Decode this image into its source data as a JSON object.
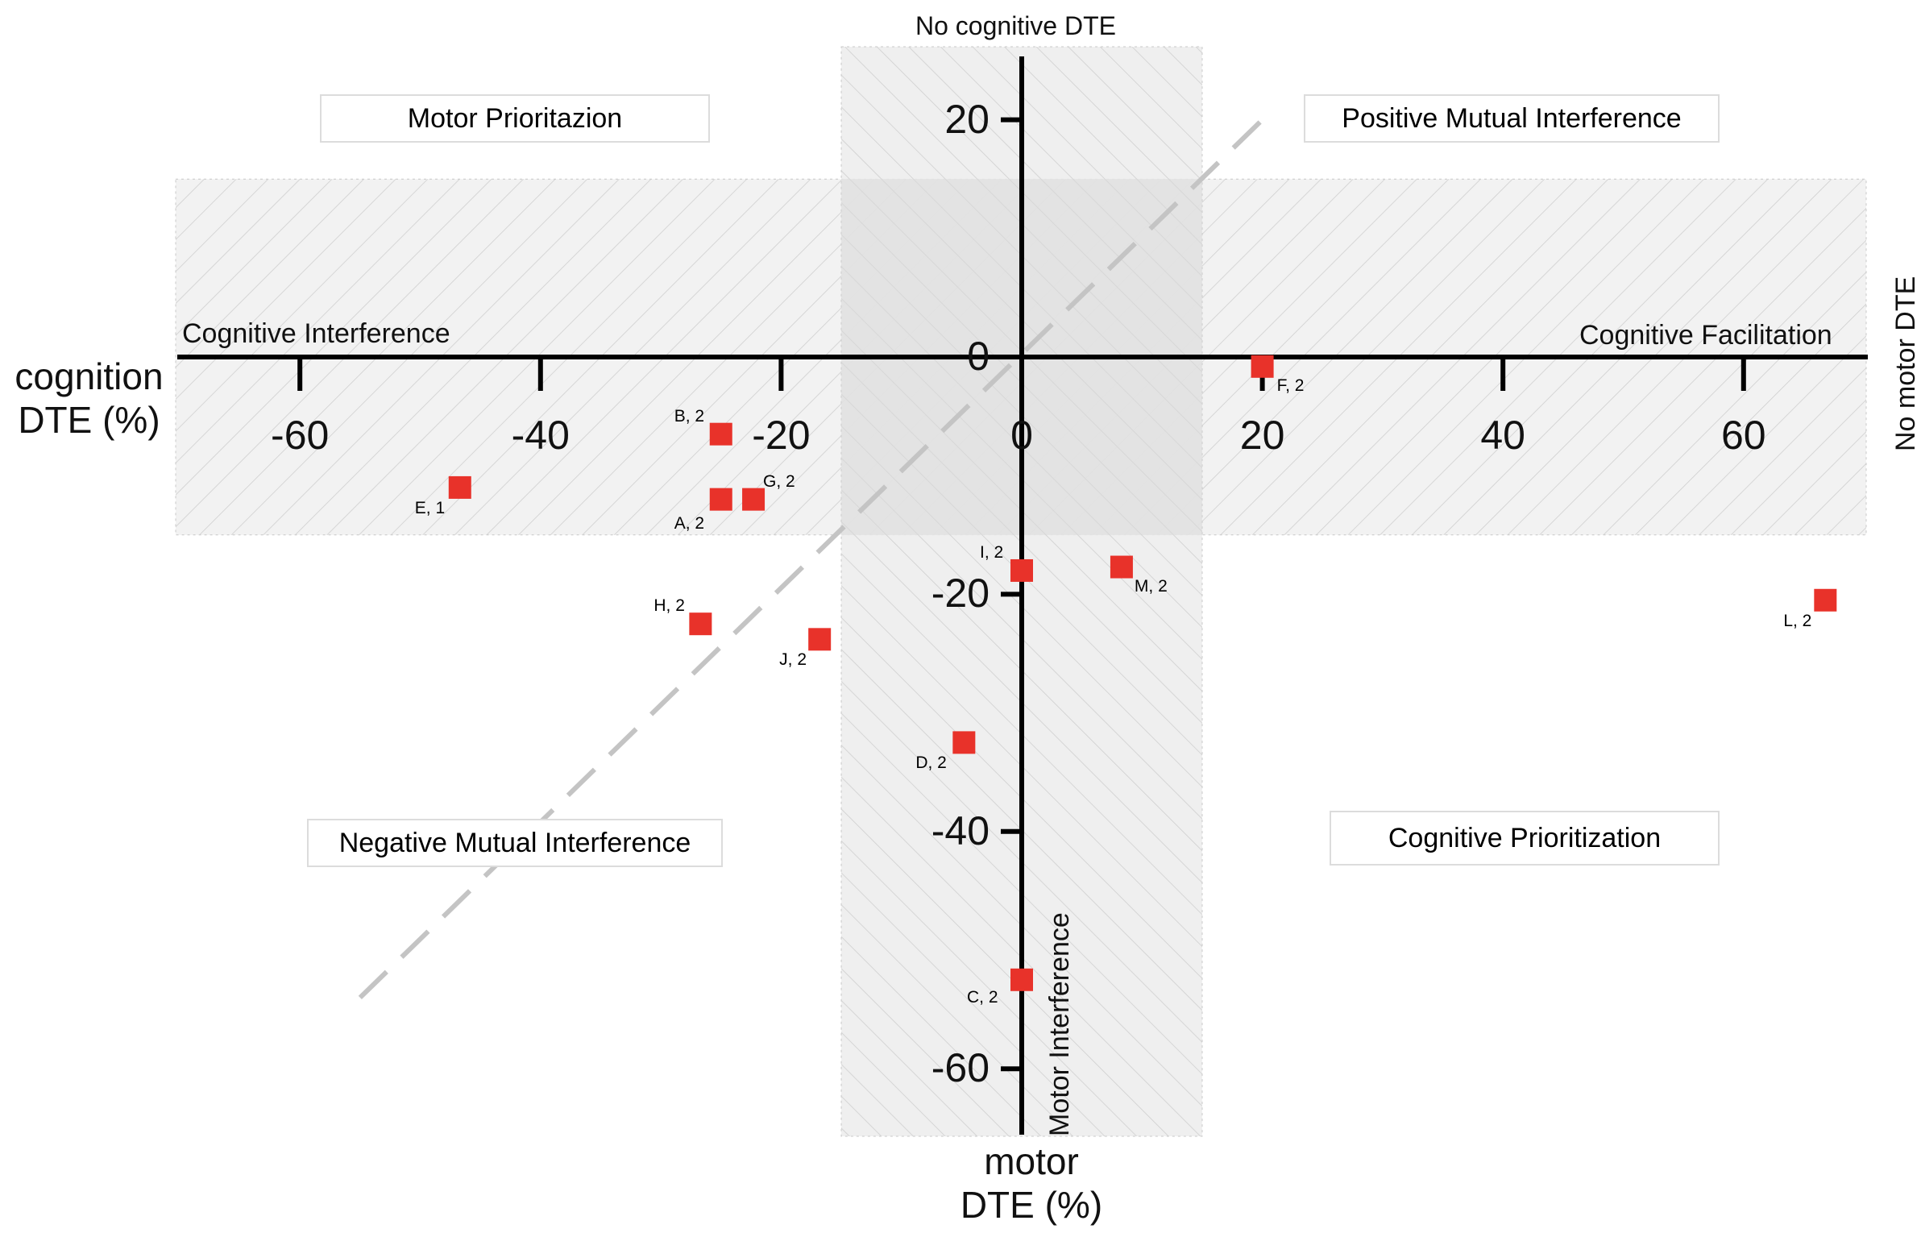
{
  "chart_data": {
    "type": "scatter",
    "y_axis_title": "cognition\nDTE (%)",
    "x_axis_title": "motor\nDTE (%)",
    "xlim": [
      -70,
      70
    ],
    "ylim": [
      -65,
      25
    ],
    "x_ticks": [
      "-60",
      "-40",
      "-20",
      "0",
      "20",
      "40",
      "60"
    ],
    "y_ticks": [
      "20",
      "0",
      "-20",
      "-40",
      "-60"
    ],
    "quadrant_labels": {
      "top_left": "Motor Prioritazion",
      "top_right": "Positive Mutual Interference",
      "bottom_left": "Negative Mutual Interference",
      "bottom_right": "Cognitive Prioritization"
    },
    "zone_labels": {
      "top": "No cognitive DTE",
      "right": "No motor DTE",
      "left_axis": "Cognitive Interference",
      "right_axis": "Cognitive Facilitation",
      "bottom_axis": "Motor Interference"
    },
    "no_cognitive_band_x": [
      -15,
      15
    ],
    "no_motor_band_y": [
      -15,
      15
    ],
    "diagonal": {
      "from": [
        -55,
        -54
      ],
      "to": [
        20,
        20
      ],
      "style": "dashed"
    },
    "marker_color": "#e8322a",
    "points": [
      {
        "label": "A, 2",
        "x": -25,
        "y": -12
      },
      {
        "label": "B, 2",
        "x": -25,
        "y": -6.5
      },
      {
        "label": "C, 2",
        "x": 0,
        "y": -52.5
      },
      {
        "label": "D, 2",
        "x": -4.8,
        "y": -32.5
      },
      {
        "label": "E, 1",
        "x": -46.7,
        "y": -11
      },
      {
        "label": "F, 2",
        "x": 20,
        "y": -0.8
      },
      {
        "label": "G, 2",
        "x": -22.3,
        "y": -12
      },
      {
        "label": "H, 2",
        "x": -26.7,
        "y": -22.5
      },
      {
        "label": "I, 2",
        "x": 0,
        "y": -18
      },
      {
        "label": "J, 2",
        "x": -16.8,
        "y": -23.8
      },
      {
        "label": "L, 2",
        "x": 66.8,
        "y": -20.5
      },
      {
        "label": "M, 2",
        "x": 8.3,
        "y": -17.7
      }
    ]
  }
}
